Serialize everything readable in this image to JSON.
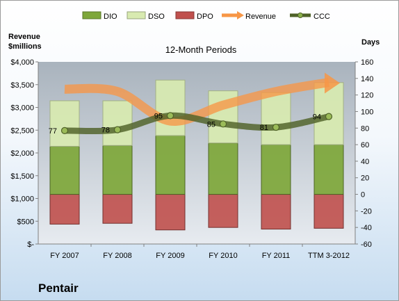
{
  "company": "Pentair",
  "chart_data": {
    "type": "bar",
    "title": "12-Month Periods",
    "categories": [
      "FY 2007",
      "FY 2008",
      "FY 2009",
      "FY 2010",
      "FY 2011",
      "TTM 3-2012"
    ],
    "left_axis": {
      "label_line1": "Revenue",
      "label_line2": "$millions",
      "ylim": [
        0,
        4000
      ],
      "ticks": [
        {
          "value": 0,
          "label": "$-"
        },
        {
          "value": 500,
          "label": "$500"
        },
        {
          "value": 1000,
          "label": "$1,000"
        },
        {
          "value": 1500,
          "label": "$1,500"
        },
        {
          "value": 2000,
          "label": "$2,000"
        },
        {
          "value": 2500,
          "label": "$2,500"
        },
        {
          "value": 3000,
          "label": "$3,000"
        },
        {
          "value": 3500,
          "label": "$3,500"
        },
        {
          "value": 4000,
          "label": "$4,000"
        }
      ]
    },
    "right_axis": {
      "label": "Days",
      "ylim": [
        -60,
        160
      ],
      "ticks": [
        -60,
        -40,
        -20,
        0,
        20,
        40,
        60,
        80,
        100,
        120,
        140,
        160
      ]
    },
    "legend": {
      "placement": "top",
      "items": [
        {
          "name": "DIO",
          "kind": "bar",
          "color": "#7ea73a"
        },
        {
          "name": "DSO",
          "kind": "bar",
          "color": "#d8eab0"
        },
        {
          "name": "DPO",
          "kind": "bar",
          "color": "#c0504d"
        },
        {
          "name": "Revenue",
          "kind": "arrow",
          "color": "#f79646"
        },
        {
          "name": "CCC",
          "kind": "line",
          "color": "#4f6228"
        }
      ]
    },
    "series": [
      {
        "name": "DPO",
        "axis": "days",
        "color": "#c0504d",
        "values": [
          -36,
          -35,
          -43,
          -40,
          -42,
          -41
        ]
      },
      {
        "name": "DIO",
        "axis": "days",
        "color": "#7ea73a",
        "values": [
          58,
          59,
          71,
          62,
          60,
          60
        ]
      },
      {
        "name": "DSO",
        "axis": "days",
        "color": "#d8eab0",
        "values": [
          55,
          54,
          67,
          63,
          63,
          75
        ]
      },
      {
        "name": "Revenue",
        "axis": "revenue",
        "color": "#f79646",
        "values": [
          3400,
          3350,
          2700,
          3050,
          3350,
          3550
        ]
      },
      {
        "name": "CCC",
        "axis": "days",
        "color": "#4f6228",
        "values": [
          77,
          78,
          95,
          85,
          81,
          94
        ]
      }
    ],
    "data_labels": [
      "77",
      "78",
      "95",
      "85",
      "81",
      "94"
    ],
    "grid": false
  }
}
